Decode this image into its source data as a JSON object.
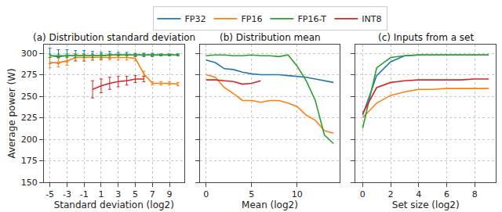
{
  "chart_data": [
    {
      "type": "line",
      "title": "(a) Distribution standard deviation",
      "x_label": "Standard deviation (log2)",
      "y_label": "Average power (W)",
      "xlim": [
        -5.7,
        10.7
      ],
      "xticks": [
        -5,
        -3,
        -1,
        1,
        3,
        5,
        7,
        9
      ],
      "ylim": [
        150,
        310
      ],
      "yticks": [
        150,
        175,
        200,
        225,
        250,
        275,
        300
      ],
      "grid": true,
      "legend": "top",
      "marker": "none",
      "series": [
        {
          "name": "FP32",
          "color": "#1f77b4",
          "x": [
            -5,
            -4,
            -3,
            -2,
            -1,
            0,
            1,
            2,
            3,
            4,
            5,
            6,
            7,
            8,
            9,
            10
          ],
          "values": [
            297,
            296,
            297,
            297,
            297,
            297,
            297,
            298,
            298,
            298,
            298,
            298,
            298,
            298,
            298,
            298
          ],
          "errors": [
            9,
            8,
            7,
            6,
            6,
            5,
            4,
            4,
            3,
            3,
            2,
            2,
            2,
            1,
            1,
            1
          ]
        },
        {
          "name": "FP16",
          "color": "#ff7f0e",
          "x": [
            -5,
            -4,
            -3,
            -2,
            -1,
            0,
            1,
            2,
            3,
            4,
            5,
            6,
            7,
            8,
            9,
            10
          ],
          "values": [
            289,
            289,
            291,
            295,
            295,
            295,
            295,
            295,
            295,
            295,
            294,
            276,
            265,
            265,
            265,
            264
          ],
          "errors": [
            6,
            5,
            5,
            4,
            4,
            3,
            3,
            3,
            3,
            3,
            3,
            3,
            2,
            2,
            2,
            2
          ]
        },
        {
          "name": "FP16-T",
          "color": "#2ca02c",
          "x": [
            -5,
            -4,
            -3,
            -2,
            -1,
            0,
            1,
            2,
            3,
            4,
            5,
            6,
            7,
            8,
            9,
            10
          ],
          "values": [
            297,
            297,
            297,
            297,
            297,
            297,
            297,
            298,
            298,
            298,
            298,
            298,
            298,
            298,
            298,
            298
          ],
          "errors": [
            2,
            2,
            2,
            2,
            2,
            2,
            2,
            1,
            1,
            1,
            1,
            1,
            1,
            1,
            1,
            1
          ]
        },
        {
          "name": "INT8",
          "color": "#d62728",
          "x": [
            0,
            1,
            2,
            3,
            4,
            5,
            6
          ],
          "values": [
            258,
            262,
            265,
            267,
            268,
            270,
            270
          ],
          "errors": [
            10,
            8,
            7,
            6,
            5,
            4,
            3
          ]
        }
      ]
    },
    {
      "type": "line",
      "title": "(b) Distribution mean",
      "x_label": "Mean (log2)",
      "xlim": [
        -0.7,
        14.7
      ],
      "xticks": [
        0,
        5,
        10
      ],
      "ylim": [
        150,
        310
      ],
      "yticks": [
        150,
        175,
        200,
        225,
        250,
        275,
        300
      ],
      "grid": true,
      "tick_labels": "x",
      "marker": "none",
      "series": [
        {
          "name": "FP32",
          "color": "#1f77b4",
          "x": [
            0,
            1,
            2,
            3,
            4,
            5,
            6,
            7,
            8,
            9,
            10,
            11,
            12,
            13,
            14
          ],
          "values": [
            292,
            289,
            282,
            281,
            278,
            276,
            275,
            275,
            275,
            274,
            273,
            272,
            270,
            268,
            266
          ]
        },
        {
          "name": "FP16",
          "color": "#ff7f0e",
          "x": [
            0,
            1,
            2,
            3,
            4,
            5,
            6,
            7,
            8,
            9,
            10,
            11,
            12,
            13,
            14
          ],
          "values": [
            275,
            272,
            260,
            253,
            245,
            245,
            243,
            245,
            245,
            242,
            238,
            228,
            222,
            210,
            207
          ]
        },
        {
          "name": "FP16-T",
          "color": "#2ca02c",
          "x": [
            0,
            1,
            2,
            3,
            4,
            5,
            6,
            7,
            8,
            9,
            10,
            11,
            12,
            13,
            14
          ],
          "values": [
            297,
            298,
            298,
            297,
            297,
            298,
            297,
            297,
            296,
            298,
            285,
            268,
            245,
            205,
            195
          ]
        },
        {
          "name": "INT8",
          "color": "#d62728",
          "x": [
            0,
            1,
            2,
            3,
            4,
            5,
            6
          ],
          "values": [
            269,
            269,
            268,
            267,
            264,
            265,
            268
          ]
        }
      ]
    },
    {
      "type": "line",
      "title": "(c) Inputs from a set",
      "x_label": "Set size (log2)",
      "xlim": [
        -0.5,
        9.5
      ],
      "xticks": [
        0,
        2,
        4,
        6,
        8
      ],
      "ylim": [
        150,
        310
      ],
      "yticks": [
        150,
        175,
        200,
        225,
        250,
        275,
        300
      ],
      "grid": true,
      "tick_labels": "x",
      "marker": "none",
      "series": [
        {
          "name": "FP32",
          "color": "#1f77b4",
          "x": [
            0,
            1,
            2,
            3,
            4,
            5,
            6,
            7,
            8,
            9
          ],
          "values": [
            228,
            274,
            290,
            297,
            298,
            298,
            298,
            298,
            298,
            298
          ]
        },
        {
          "name": "FP16",
          "color": "#ff7f0e",
          "x": [
            0,
            1,
            2,
            3,
            4,
            5,
            6,
            7,
            8,
            9
          ],
          "values": [
            225,
            242,
            251,
            255,
            258,
            258,
            259,
            259,
            259,
            259
          ]
        },
        {
          "name": "FP16-T",
          "color": "#2ca02c",
          "x": [
            0,
            1,
            2,
            3,
            4,
            5,
            6,
            7,
            8,
            9
          ],
          "values": [
            213,
            283,
            295,
            297,
            298,
            298,
            298,
            298,
            298,
            298
          ]
        },
        {
          "name": "INT8",
          "color": "#d62728",
          "x": [
            0,
            1,
            2,
            3,
            4,
            5,
            6,
            7,
            8,
            9
          ],
          "values": [
            230,
            260,
            266,
            268,
            269,
            269,
            269,
            269,
            270,
            270
          ]
        }
      ]
    }
  ]
}
